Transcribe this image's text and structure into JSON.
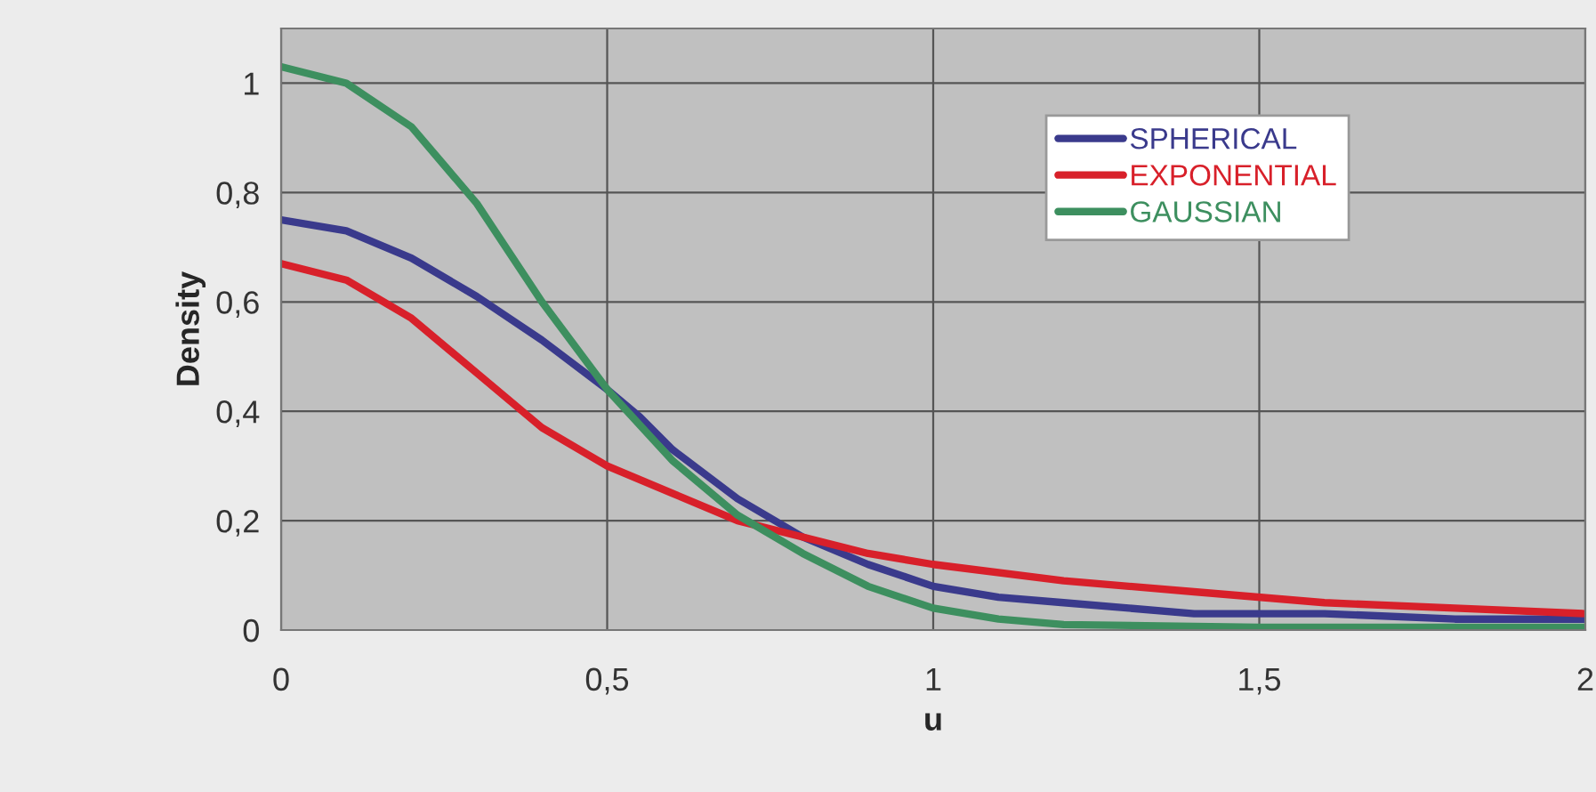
{
  "chart_data": {
    "type": "line",
    "xlabel": "u",
    "ylabel": "Density",
    "xlim": [
      0,
      2
    ],
    "ylim": [
      0,
      1.1
    ],
    "xticks": [
      0,
      {
        "value": 0.5,
        "label": "0,5"
      },
      1,
      {
        "value": 1.5,
        "label": "1,5"
      },
      2
    ],
    "yticks": [
      0,
      {
        "value": 0.2,
        "label": "0,2"
      },
      {
        "value": 0.4,
        "label": "0,4"
      },
      {
        "value": 0.6,
        "label": "0,6"
      },
      {
        "value": 0.8,
        "label": "0,8"
      },
      1
    ],
    "grid": true,
    "legend": "top right",
    "line_style": "solid",
    "marker": "none",
    "series": [
      {
        "name": "SPHERICAL",
        "color": "#3a3a8c",
        "x": [
          0,
          0.1,
          0.2,
          0.3,
          0.4,
          0.5,
          0.55,
          0.6,
          0.7,
          0.8,
          0.9,
          1.0,
          1.1,
          1.2,
          1.4,
          1.6,
          1.8,
          2.0
        ],
        "values": [
          0.75,
          0.73,
          0.68,
          0.61,
          0.53,
          0.44,
          0.39,
          0.33,
          0.24,
          0.17,
          0.12,
          0.08,
          0.06,
          0.05,
          0.03,
          0.03,
          0.02,
          0.02
        ]
      },
      {
        "name": "EXPONENTIAL",
        "color": "#d8202a",
        "x": [
          0,
          0.1,
          0.2,
          0.3,
          0.4,
          0.5,
          0.6,
          0.7,
          0.8,
          0.9,
          1.0,
          1.2,
          1.4,
          1.6,
          1.8,
          2.0
        ],
        "values": [
          0.67,
          0.64,
          0.57,
          0.47,
          0.37,
          0.3,
          0.25,
          0.2,
          0.17,
          0.14,
          0.12,
          0.09,
          0.07,
          0.05,
          0.04,
          0.03
        ]
      },
      {
        "name": "GAUSSIAN",
        "color": "#3d8f5f",
        "x": [
          0,
          0.1,
          0.2,
          0.3,
          0.4,
          0.5,
          0.6,
          0.7,
          0.8,
          0.9,
          1.0,
          1.1,
          1.2,
          1.5,
          2.0
        ],
        "values": [
          1.03,
          1.0,
          0.92,
          0.78,
          0.6,
          0.44,
          0.31,
          0.21,
          0.14,
          0.08,
          0.04,
          0.02,
          0.01,
          0.005,
          0.005
        ]
      }
    ]
  }
}
